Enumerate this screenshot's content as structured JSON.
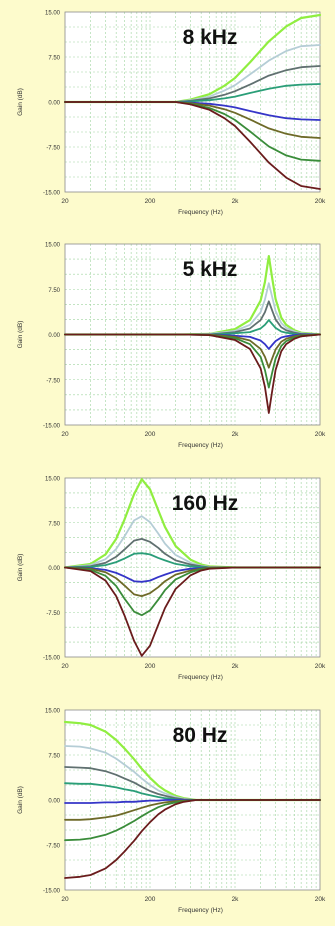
{
  "page": {
    "background": "#fdfbcc",
    "plot_background": "#ffffff"
  },
  "series_colors": [
    "#90ee40",
    "#b5cdd6",
    "#607070",
    "#2a9e78",
    "#3535c8",
    "#6e6a28",
    "#3a8c3a",
    "#6a1c1c"
  ],
  "grid": {
    "on": true,
    "color": "#9fd49f",
    "style": "dashed"
  },
  "chart_data": [
    {
      "type": "line",
      "title": "8 kHz",
      "xlabel": "Frequency (Hz)",
      "ylabel": "Gain (dB)",
      "xscale": "log",
      "xlim": [
        20,
        20000
      ],
      "ylim": [
        -15,
        15
      ],
      "xticks": [
        "20",
        "200",
        "2k",
        "20k"
      ],
      "yticks": [
        "15.00",
        "7.50",
        "0.00",
        "-7.50",
        "-15.00"
      ],
      "x": [
        20,
        100,
        200,
        400,
        600,
        1000,
        1500,
        2000,
        3000,
        5000,
        8000,
        12000,
        20000
      ],
      "series": [
        {
          "values": [
            0,
            0,
            0,
            0,
            0.4,
            1.3,
            2.7,
            4.0,
            6.6,
            10.1,
            12.6,
            14.0,
            14.5
          ]
        },
        {
          "values": [
            0,
            0,
            0,
            0,
            0.3,
            0.9,
            1.9,
            2.8,
            4.6,
            6.9,
            8.5,
            9.3,
            9.5
          ]
        },
        {
          "values": [
            0,
            0,
            0,
            0,
            0.2,
            0.6,
            1.2,
            1.8,
            2.9,
            4.4,
            5.3,
            5.8,
            6.0
          ]
        },
        {
          "values": [
            0,
            0,
            0,
            0,
            0.1,
            0.3,
            0.6,
            0.9,
            1.5,
            2.2,
            2.7,
            2.9,
            3.0
          ]
        },
        {
          "values": [
            0,
            0,
            0,
            0,
            -0.1,
            -0.3,
            -0.6,
            -0.9,
            -1.5,
            -2.2,
            -2.7,
            -2.9,
            -3.0
          ]
        },
        {
          "values": [
            0,
            0,
            0,
            0,
            -0.2,
            -0.6,
            -1.2,
            -1.8,
            -2.9,
            -4.4,
            -5.3,
            -5.8,
            -6.0
          ]
        },
        {
          "values": [
            0,
            0,
            0,
            0,
            -0.3,
            -1.0,
            -2.0,
            -3.0,
            -4.9,
            -7.4,
            -8.9,
            -9.6,
            -9.8
          ]
        },
        {
          "values": [
            0,
            0,
            0,
            0,
            -0.4,
            -1.3,
            -2.7,
            -4.0,
            -6.6,
            -10.1,
            -12.6,
            -14.0,
            -14.5
          ]
        }
      ]
    },
    {
      "type": "line",
      "title": "5 kHz",
      "xlabel": "Frequency (Hz)",
      "ylabel": "Gain (dB)",
      "xscale": "log",
      "xlim": [
        20,
        20000
      ],
      "ylim": [
        -15,
        15
      ],
      "xticks": [
        "20",
        "200",
        "2k",
        "20k"
      ],
      "yticks": [
        "15.00",
        "7.50",
        "0.00",
        "-7.50",
        "-15.00"
      ],
      "x": [
        20,
        200,
        500,
        1000,
        2000,
        3000,
        4000,
        4500,
        5000,
        5500,
        6000,
        7000,
        8000,
        10000,
        12000,
        20000
      ],
      "series": [
        {
          "values": [
            0,
            0,
            0,
            0.1,
            0.9,
            2.4,
            5.6,
            8.7,
            13.0,
            9.2,
            5.9,
            2.8,
            1.6,
            0.7,
            0.3,
            0
          ]
        },
        {
          "values": [
            0,
            0,
            0,
            0.1,
            0.6,
            1.6,
            3.7,
            5.8,
            8.5,
            6.1,
            3.9,
            1.9,
            1.1,
            0.5,
            0.2,
            0
          ]
        },
        {
          "values": [
            0,
            0,
            0,
            0,
            0.4,
            1.0,
            2.4,
            3.7,
            5.5,
            3.9,
            2.5,
            1.2,
            0.7,
            0.3,
            0.1,
            0
          ]
        },
        {
          "values": [
            0,
            0,
            0,
            0,
            0.2,
            0.4,
            1.0,
            1.6,
            2.4,
            1.7,
            1.1,
            0.5,
            0.3,
            0.1,
            0,
            0
          ]
        },
        {
          "values": [
            0,
            0,
            0,
            0,
            -0.2,
            -0.4,
            -1.0,
            -1.6,
            -2.4,
            -1.7,
            -1.1,
            -0.5,
            -0.3,
            -0.1,
            0,
            0
          ]
        },
        {
          "values": [
            0,
            0,
            0,
            0,
            -0.4,
            -1.0,
            -2.4,
            -3.7,
            -5.5,
            -3.9,
            -2.5,
            -1.2,
            -0.7,
            -0.3,
            -0.1,
            0
          ]
        },
        {
          "values": [
            0,
            0,
            0,
            -0.1,
            -0.6,
            -1.6,
            -3.7,
            -5.9,
            -8.8,
            -6.2,
            -4.0,
            -1.9,
            -1.1,
            -0.5,
            -0.2,
            0
          ]
        },
        {
          "values": [
            0,
            0,
            0,
            -0.1,
            -0.9,
            -2.4,
            -5.6,
            -8.7,
            -13.0,
            -9.2,
            -5.9,
            -2.8,
            -1.6,
            -0.7,
            -0.3,
            0
          ]
        }
      ]
    },
    {
      "type": "line",
      "title": "160 Hz",
      "xlabel": "Frequency (Hz)",
      "ylabel": "Gain (dB)",
      "xscale": "log",
      "xlim": [
        20,
        20000
      ],
      "ylim": [
        -15,
        15
      ],
      "xticks": [
        "20",
        "200",
        "2k",
        "20k"
      ],
      "yticks": [
        "15.00",
        "7.50",
        "0.00",
        "-7.50",
        "-15.00"
      ],
      "x": [
        20,
        40,
        60,
        80,
        100,
        130,
        160,
        200,
        250,
        300,
        400,
        600,
        800,
        1000,
        2000,
        20000
      ],
      "series": [
        {
          "values": [
            0,
            0.6,
            2.2,
            4.8,
            8.0,
            12.3,
            14.8,
            13.1,
            9.6,
            6.8,
            3.6,
            1.3,
            0.5,
            0.2,
            0,
            0
          ]
        },
        {
          "values": [
            0,
            0.4,
            1.4,
            3.1,
            5.2,
            7.9,
            8.6,
            7.6,
            5.7,
            4.0,
            2.1,
            0.8,
            0.3,
            0.1,
            0,
            0
          ]
        },
        {
          "values": [
            0,
            0.2,
            0.8,
            1.8,
            3.0,
            4.5,
            4.8,
            4.3,
            3.3,
            2.3,
            1.2,
            0.5,
            0.2,
            0,
            0,
            0
          ]
        },
        {
          "values": [
            0,
            0.1,
            0.4,
            0.9,
            1.5,
            2.3,
            2.4,
            2.2,
            1.6,
            1.2,
            0.6,
            0.2,
            0.1,
            0,
            0,
            0
          ]
        },
        {
          "values": [
            0,
            -0.1,
            -0.4,
            -0.9,
            -1.5,
            -2.3,
            -2.4,
            -2.2,
            -1.6,
            -1.2,
            -0.6,
            -0.2,
            -0.1,
            0,
            0,
            0
          ]
        },
        {
          "values": [
            0,
            -0.2,
            -0.8,
            -1.8,
            -3.0,
            -4.5,
            -4.8,
            -4.3,
            -3.3,
            -2.3,
            -1.2,
            -0.5,
            -0.2,
            0,
            0,
            0
          ]
        },
        {
          "values": [
            0,
            -0.4,
            -1.4,
            -3.1,
            -5.2,
            -7.4,
            -8.0,
            -7.2,
            -5.4,
            -3.8,
            -2.0,
            -0.8,
            -0.3,
            -0.1,
            0,
            0
          ]
        },
        {
          "values": [
            0,
            -0.6,
            -2.2,
            -4.8,
            -8.0,
            -12.3,
            -14.8,
            -13.1,
            -9.6,
            -6.8,
            -3.6,
            -1.3,
            -0.5,
            -0.2,
            0,
            0
          ]
        }
      ]
    },
    {
      "type": "line",
      "title": "80 Hz",
      "xlabel": "Frequency (Hz)",
      "ylabel": "Gain (dB)",
      "xscale": "log",
      "xlim": [
        20,
        20000
      ],
      "ylim": [
        -15,
        15
      ],
      "xticks": [
        "20",
        "200",
        "2k",
        "20k"
      ],
      "yticks": [
        "15.00",
        "7.50",
        "0.00",
        "-7.50",
        "-15.00"
      ],
      "x": [
        20,
        30,
        40,
        60,
        80,
        100,
        130,
        160,
        200,
        250,
        300,
        400,
        500,
        700,
        1000,
        2000,
        20000
      ],
      "series": [
        {
          "values": [
            13.0,
            12.8,
            12.5,
            11.4,
            10.0,
            8.6,
            6.8,
            5.2,
            3.7,
            2.4,
            1.6,
            0.7,
            0.3,
            0,
            0,
            0,
            0
          ]
        },
        {
          "values": [
            9.0,
            8.9,
            8.6,
            7.9,
            6.9,
            5.9,
            4.7,
            3.6,
            2.5,
            1.6,
            1.1,
            0.5,
            0.2,
            0,
            0,
            0,
            0
          ]
        },
        {
          "values": [
            5.5,
            5.4,
            5.3,
            4.8,
            4.2,
            3.6,
            2.9,
            2.2,
            1.5,
            1.0,
            0.7,
            0.3,
            0.1,
            0,
            0,
            0,
            0
          ]
        },
        {
          "values": [
            2.8,
            2.7,
            2.7,
            2.4,
            2.1,
            1.8,
            1.5,
            1.1,
            0.8,
            0.5,
            0.3,
            0.1,
            0,
            0,
            0,
            0,
            0
          ]
        },
        {
          "values": [
            -0.5,
            -0.5,
            -0.5,
            -0.4,
            -0.4,
            -0.3,
            -0.3,
            -0.2,
            -0.1,
            -0.1,
            0,
            0,
            0,
            0,
            0,
            0,
            0
          ]
        },
        {
          "values": [
            -3.3,
            -3.3,
            -3.2,
            -2.9,
            -2.6,
            -2.2,
            -1.7,
            -1.3,
            -0.9,
            -0.6,
            -0.4,
            -0.2,
            -0.1,
            0,
            0,
            0,
            0
          ]
        },
        {
          "values": [
            -6.7,
            -6.6,
            -6.4,
            -5.8,
            -5.1,
            -4.4,
            -3.5,
            -2.7,
            -1.9,
            -1.2,
            -0.8,
            -0.4,
            -0.2,
            0,
            0,
            0,
            0
          ]
        },
        {
          "values": [
            -13.0,
            -12.8,
            -12.5,
            -11.4,
            -10.0,
            -8.6,
            -6.8,
            -5.2,
            -3.7,
            -2.4,
            -1.6,
            -0.7,
            -0.3,
            0,
            0,
            0,
            0
          ]
        }
      ]
    }
  ]
}
